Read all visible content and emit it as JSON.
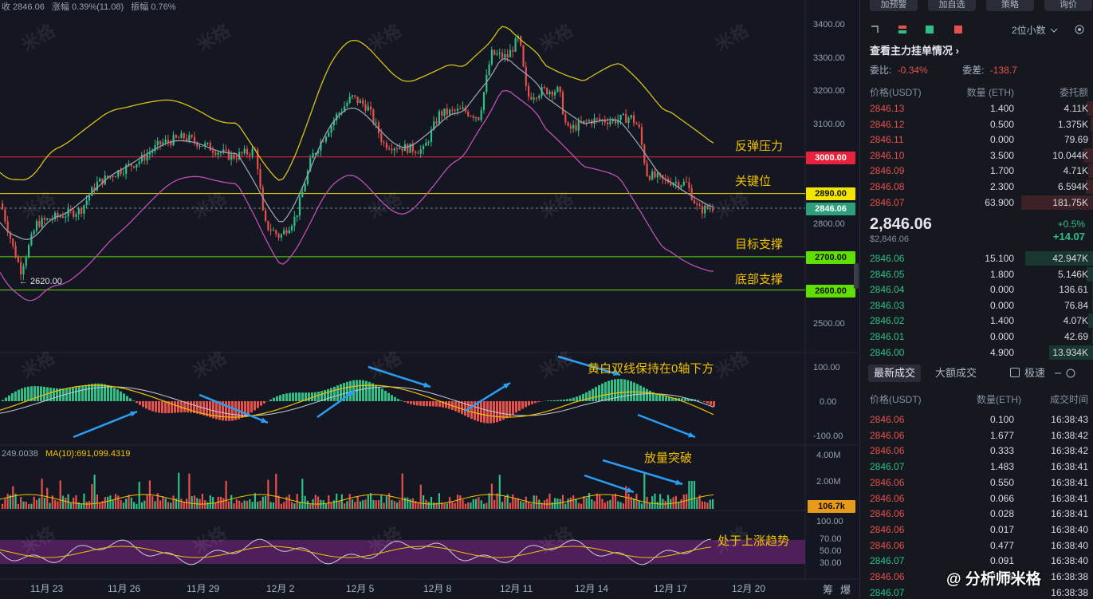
{
  "header": {
    "close": "收 2846.06",
    "change": "涨幅 0.39%(11.08)",
    "amplitude": "振幅 0.76%"
  },
  "price_levels": [
    {
      "id": "resist",
      "label": "3000.00",
      "annotation": "反弹压力",
      "color": "#e8223c",
      "text_color": "#ffffff"
    },
    {
      "id": "key",
      "label": "2890.00",
      "annotation": "关键位",
      "color": "#f2e600",
      "text_color": "#111111"
    },
    {
      "id": "current",
      "label": "2846.06",
      "annotation": "",
      "color": "#2e9f7c",
      "text_color": "#ffffff"
    },
    {
      "id": "target",
      "label": "2700.00",
      "annotation": "目标支撑",
      "color": "#5fe000",
      "text_color": "#111111"
    },
    {
      "id": "bottom",
      "label": "2600.00",
      "annotation": "底部支撑",
      "color": "#5fe000",
      "text_color": "#111111"
    }
  ],
  "low_marker": "← 2620.00",
  "y_axis": [
    "3400.00",
    "3300.00",
    "3200.00",
    "3100.00",
    "2900.00",
    "2800.00",
    "2500.00"
  ],
  "macd_axis": [
    "100.00",
    "0.00",
    "-100.00"
  ],
  "vol_axis": [
    "4.00M",
    "2.00M"
  ],
  "vol_tag": "106.7k",
  "rsi_axis": [
    "100.00",
    "70.00",
    "50.00",
    "30.00"
  ],
  "vol_header": {
    "left": "249.0038",
    "ma10": "MA(10):691,099.4319"
  },
  "macd_note": "黄白双线保持在0轴下方",
  "vol_note": "放量突破",
  "rsi_note": "处于上涨趋势",
  "dates": [
    "11月 23",
    "11月 26",
    "11月 29",
    "12月 2",
    "12月 5",
    "12月 8",
    "12月 11",
    "12月 14",
    "12月 17",
    "12月 20"
  ],
  "bottom_right": [
    "筹",
    "爆"
  ],
  "watermark": "米格",
  "signature": "@ 分析师米格",
  "chart_data": {
    "type": "candlestick",
    "title": "",
    "ylim": [
      2450,
      3450
    ],
    "levels": [
      3000,
      2890,
      2846.06,
      2700,
      2600
    ],
    "last_close": 2846.06,
    "low": 2620
  },
  "panel": {
    "top_buttons": [
      "加预警",
      "加自选",
      "策略",
      "询价"
    ],
    "decimal": "2位小数",
    "section_title": "查看主力挂单情况",
    "ratio_label": "委比:",
    "ratio_value": "-0.34%",
    "diff_label": "委差:",
    "diff_value": "-138.7",
    "book_headers": [
      "价格(USDT)",
      "数量 (ETH)",
      "委托额"
    ],
    "asks": [
      [
        "2846.13",
        "1.400",
        "4.11K"
      ],
      [
        "2846.12",
        "0.500",
        "1.375K"
      ],
      [
        "2846.11",
        "0.000",
        "79.69"
      ],
      [
        "2846.10",
        "3.500",
        "10.044K"
      ],
      [
        "2846.09",
        "1.700",
        "4.71K"
      ],
      [
        "2846.08",
        "2.300",
        "6.594K"
      ],
      [
        "2846.07",
        "63.900",
        "181.75K"
      ]
    ],
    "last_price": "2,846.06",
    "last_price_usd": "$2,846.06",
    "last_change_pct": "+0.5%",
    "last_change_abs": "+14.07",
    "bids": [
      [
        "2846.06",
        "15.100",
        "42.947K"
      ],
      [
        "2846.05",
        "1.800",
        "5.146K"
      ],
      [
        "2846.04",
        "0.000",
        "136.61"
      ],
      [
        "2846.03",
        "0.000",
        "76.84"
      ],
      [
        "2846.02",
        "1.400",
        "4.07K"
      ],
      [
        "2846.01",
        "0.000",
        "42.69"
      ],
      [
        "2846.00",
        "4.900",
        "13.934K"
      ]
    ],
    "trade_tabs": [
      "最新成交",
      "大额成交"
    ],
    "fast_label": "极速",
    "trade_headers": [
      "价格(USDT)",
      "数量(ETH)",
      "成交时间"
    ],
    "trades": [
      [
        "2846.06",
        "0.100",
        "16:38:43",
        "red"
      ],
      [
        "2846.06",
        "1.677",
        "16:38:42",
        "red"
      ],
      [
        "2846.06",
        "0.333",
        "16:38:42",
        "red"
      ],
      [
        "2846.07",
        "1.483",
        "16:38:41",
        "green"
      ],
      [
        "2846.06",
        "0.550",
        "16:38:41",
        "red"
      ],
      [
        "2846.06",
        "0.066",
        "16:38:41",
        "red"
      ],
      [
        "2846.06",
        "0.028",
        "16:38:41",
        "red"
      ],
      [
        "2846.06",
        "0.017",
        "16:38:40",
        "red"
      ],
      [
        "2846.06",
        "0.477",
        "16:38:40",
        "red"
      ],
      [
        "2846.07",
        "0.091",
        "16:38:40",
        "green"
      ],
      [
        "2846.06",
        "0.756",
        "16:38:38",
        "red"
      ],
      [
        "2846.07",
        "",
        "16:38:38",
        "green"
      ]
    ]
  }
}
